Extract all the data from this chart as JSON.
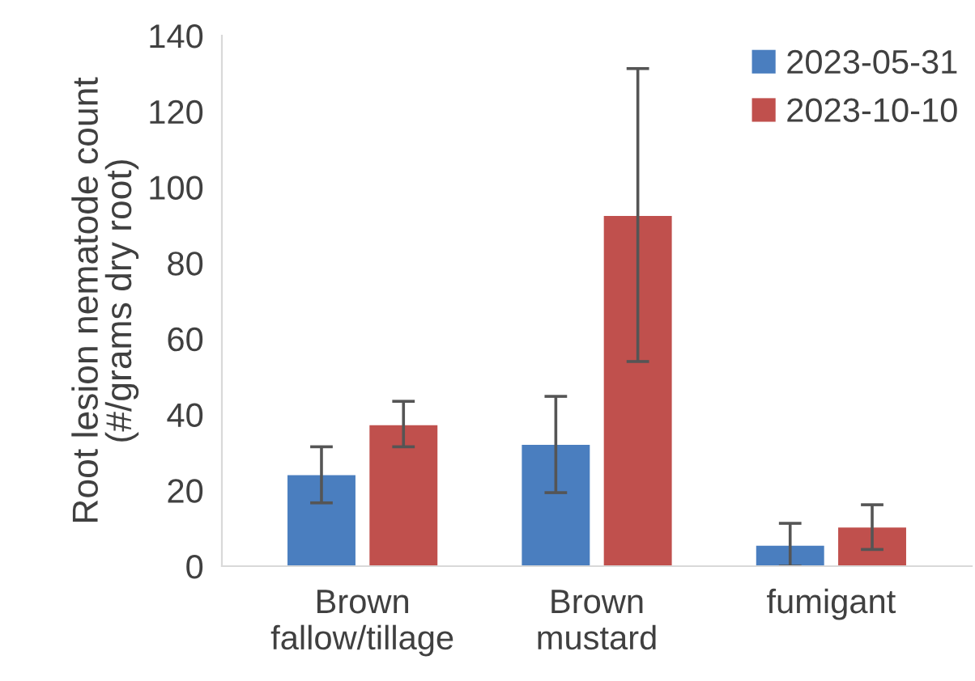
{
  "chart_data": {
    "type": "bar",
    "ylabel": "Root lesion nematode count\n(#/grams dry root)",
    "categories": [
      "Brown\nfallow/tillage",
      "Brown\nmustard",
      "fumigant"
    ],
    "series": [
      {
        "name": "2023-05-31",
        "color": "#4a7ebf",
        "values": [
          24,
          32,
          5.4
        ],
        "errors": [
          [
            16.7,
            31.5
          ],
          [
            19.4,
            44.8
          ],
          [
            0,
            11.3
          ]
        ]
      },
      {
        "name": "2023-10-10",
        "color": "#c0504d",
        "values": [
          37.2,
          92.4,
          10.2
        ],
        "errors": [
          [
            31.5,
            43.5
          ],
          [
            54,
            131.3
          ],
          [
            4.4,
            16.2
          ]
        ]
      }
    ],
    "ylim": [
      0,
      140
    ],
    "yticks": [
      0,
      20,
      40,
      60,
      80,
      100,
      120,
      140
    ],
    "grid": false,
    "legend": "top right"
  }
}
